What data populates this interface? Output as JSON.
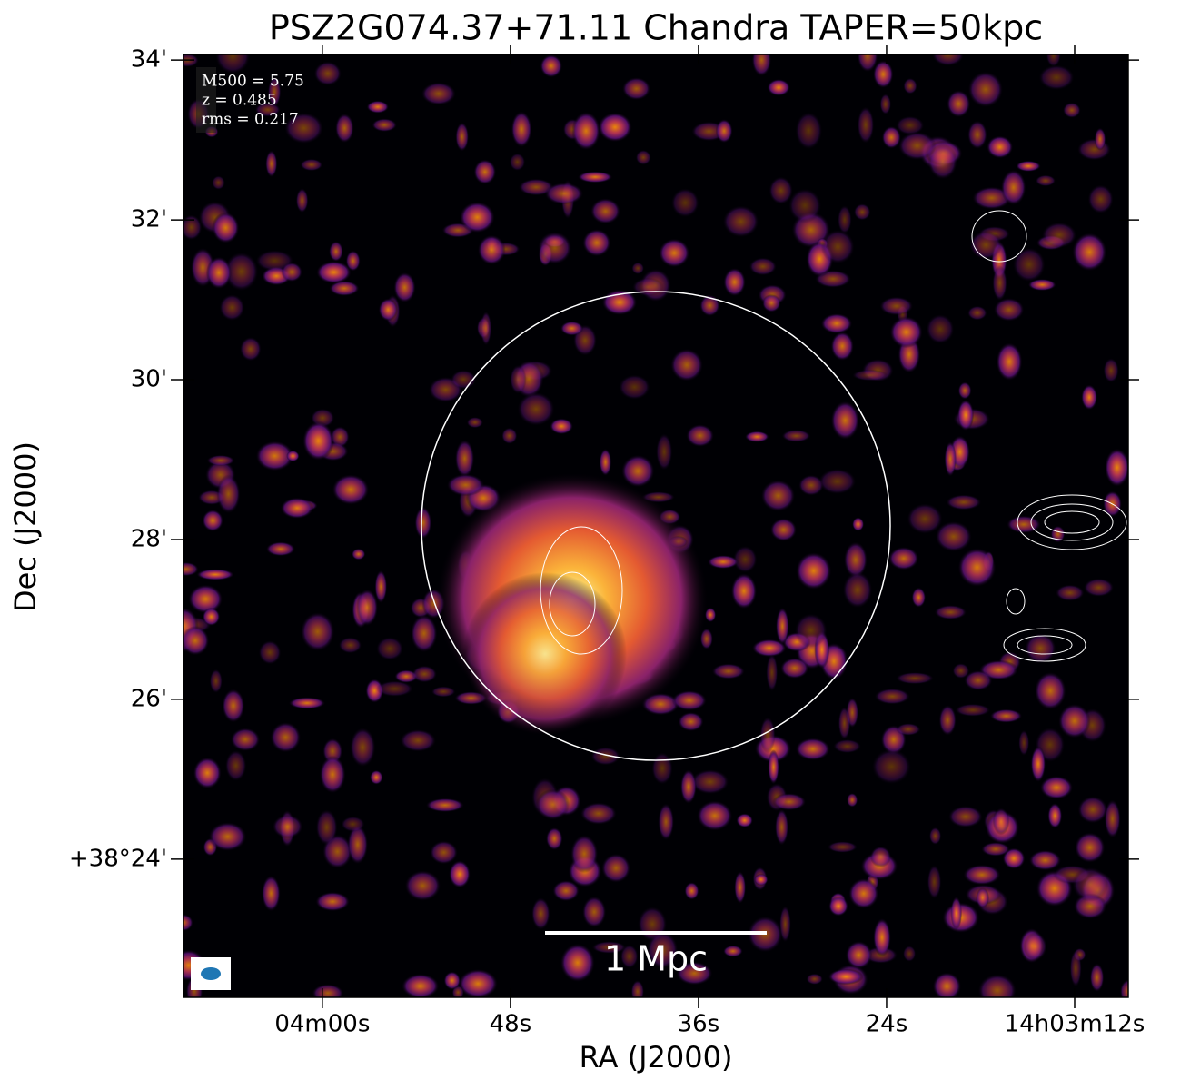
{
  "chart_data": {
    "type": "image",
    "title": "PSZ2G074.37+71.11 Chandra TAPER=50kpc",
    "x_label": "RA (J2000)",
    "y_label": "Dec (J2000)",
    "annotations": [
      "M500 = 5.75",
      "z = 0.485",
      "rms = 0.217"
    ],
    "scale_bar": "1 Mpc",
    "xlim": [
      68.86,
      8.58
    ],
    "xticks": [
      {
        "value": 60,
        "label": "04m00s"
      },
      {
        "value": 48,
        "label": "48s"
      },
      {
        "value": 36,
        "label": "36s"
      },
      {
        "value": 24,
        "label": "24s"
      },
      {
        "value": 12,
        "label": "14h03m12s"
      }
    ],
    "ylim": [
      22.27,
      34.07
    ],
    "yticks": [
      {
        "value": 24,
        "label": "+38°24'"
      },
      {
        "value": 26,
        "label": "26'"
      },
      {
        "value": 28,
        "label": "28'"
      },
      {
        "value": 30,
        "label": "30'"
      },
      {
        "value": 32,
        "label": "32'"
      },
      {
        "value": 34,
        "label": "34'"
      }
    ]
  }
}
